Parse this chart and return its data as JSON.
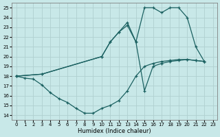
{
  "background_color": "#c8e8e8",
  "grid_color": "#b0d0d0",
  "line_color": "#1a6060",
  "xlabel": "Humidex (Indice chaleur)",
  "ylim": [
    13.5,
    25.5
  ],
  "xlim": [
    -0.5,
    23.5
  ],
  "yticks": [
    14,
    15,
    16,
    17,
    18,
    19,
    20,
    21,
    22,
    23,
    24,
    25
  ],
  "xticks": [
    0,
    1,
    2,
    3,
    4,
    5,
    6,
    7,
    8,
    9,
    10,
    11,
    12,
    13,
    14,
    15,
    16,
    17,
    18,
    19,
    20,
    21,
    22,
    23
  ],
  "line1_x": [
    0,
    1,
    2,
    3,
    4,
    5,
    6,
    7,
    8,
    9,
    10,
    11,
    12,
    13,
    14,
    15,
    16,
    17,
    18,
    19,
    20,
    21,
    22
  ],
  "line1_y": [
    18,
    17.8,
    17.7,
    17.1,
    16.3,
    15.7,
    15.3,
    14.7,
    14.2,
    14.2,
    14.7,
    15.0,
    15.5,
    16.5,
    18.0,
    19.0,
    19.3,
    19.5,
    19.6,
    19.7,
    19.7,
    19.6,
    19.5
  ],
  "line2_x": [
    0,
    3,
    10,
    11,
    12,
    13,
    14,
    15,
    16,
    17,
    18,
    19,
    20,
    21,
    22
  ],
  "line2_y": [
    18,
    18.2,
    20.0,
    21.5,
    22.5,
    23.5,
    21.5,
    25.0,
    25.0,
    24.5,
    25.0,
    25.0,
    24.0,
    21.0,
    19.5
  ],
  "line3_x": [
    0,
    3,
    10,
    11,
    12,
    13,
    14,
    15,
    16,
    17,
    18,
    19,
    20,
    21,
    22
  ],
  "line3_y": [
    18,
    18.2,
    20.0,
    21.5,
    22.5,
    23.2,
    21.5,
    16.5,
    19.0,
    19.3,
    19.5,
    19.6,
    19.7,
    19.6,
    19.5
  ]
}
